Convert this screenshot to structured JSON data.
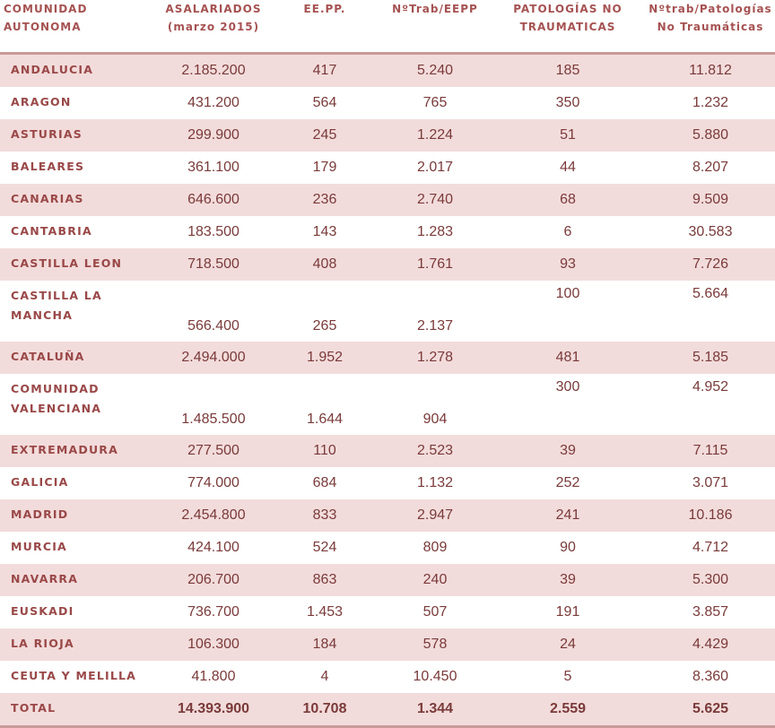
{
  "table": {
    "headers": [
      "COMUNIDAD\nAUTONOMA",
      "ASALARIADOS\n(marzo 2015)",
      "EE.PP.",
      "NºTrab/EEPP",
      "PATOLOGÍAS NO\nTRAUMATICAS",
      "Nºtrab/Patologías\nNo Traumáticas"
    ],
    "rows": [
      [
        "ANDALUCIA",
        "2.185.200",
        "417",
        "5.240",
        "185",
        "11.812"
      ],
      [
        "ARAGON",
        "431.200",
        "564",
        "765",
        "350",
        "1.232"
      ],
      [
        "ASTURIAS",
        "299.900",
        "245",
        "1.224",
        "51",
        "5.880"
      ],
      [
        "BALEARES",
        "361.100",
        "179",
        "2.017",
        "44",
        "8.207"
      ],
      [
        "CANARIAS",
        "646.600",
        "236",
        "2.740",
        "68",
        "9.509"
      ],
      [
        "CANTABRIA",
        "183.500",
        "143",
        "1.283",
        "6",
        "30.583"
      ],
      [
        "CASTILLA LEON",
        "718.500",
        "408",
        "1.761",
        "93",
        "7.726"
      ],
      [
        "CASTILLA LA\nMANCHA",
        "566.400",
        "265",
        "2.137",
        "100",
        "5.664"
      ],
      [
        "CATALUÑA",
        "2.494.000",
        "1.952",
        "1.278",
        "481",
        "5.185"
      ],
      [
        "COMUNIDAD\nVALENCIANA",
        "1.485.500",
        "1.644",
        "904",
        "300",
        "4.952"
      ],
      [
        "EXTREMADURA",
        "277.500",
        "110",
        "2.523",
        "39",
        "7.115"
      ],
      [
        "GALICIA",
        "774.000",
        "684",
        "1.132",
        "252",
        "3.071"
      ],
      [
        "MADRID",
        "2.454.800",
        "833",
        "2.947",
        "241",
        "10.186"
      ],
      [
        "MURCIA",
        "424.100",
        "524",
        "809",
        "90",
        "4.712"
      ],
      [
        "NAVARRA",
        "206.700",
        "863",
        "240",
        "39",
        "5.300"
      ],
      [
        "EUSKADI",
        "736.700",
        "1.453",
        "507",
        "191",
        "3.857"
      ],
      [
        "LA RIOJA",
        "106.300",
        "184",
        "578",
        "24",
        "4.429"
      ],
      [
        "CEUTA Y MELILLA",
        "41.800",
        "4",
        "10.450",
        "5",
        "8.360"
      ]
    ],
    "total": [
      "TOTAL",
      "14.393.900",
      "10.708",
      "1.344",
      "2.559",
      "5.625"
    ]
  }
}
